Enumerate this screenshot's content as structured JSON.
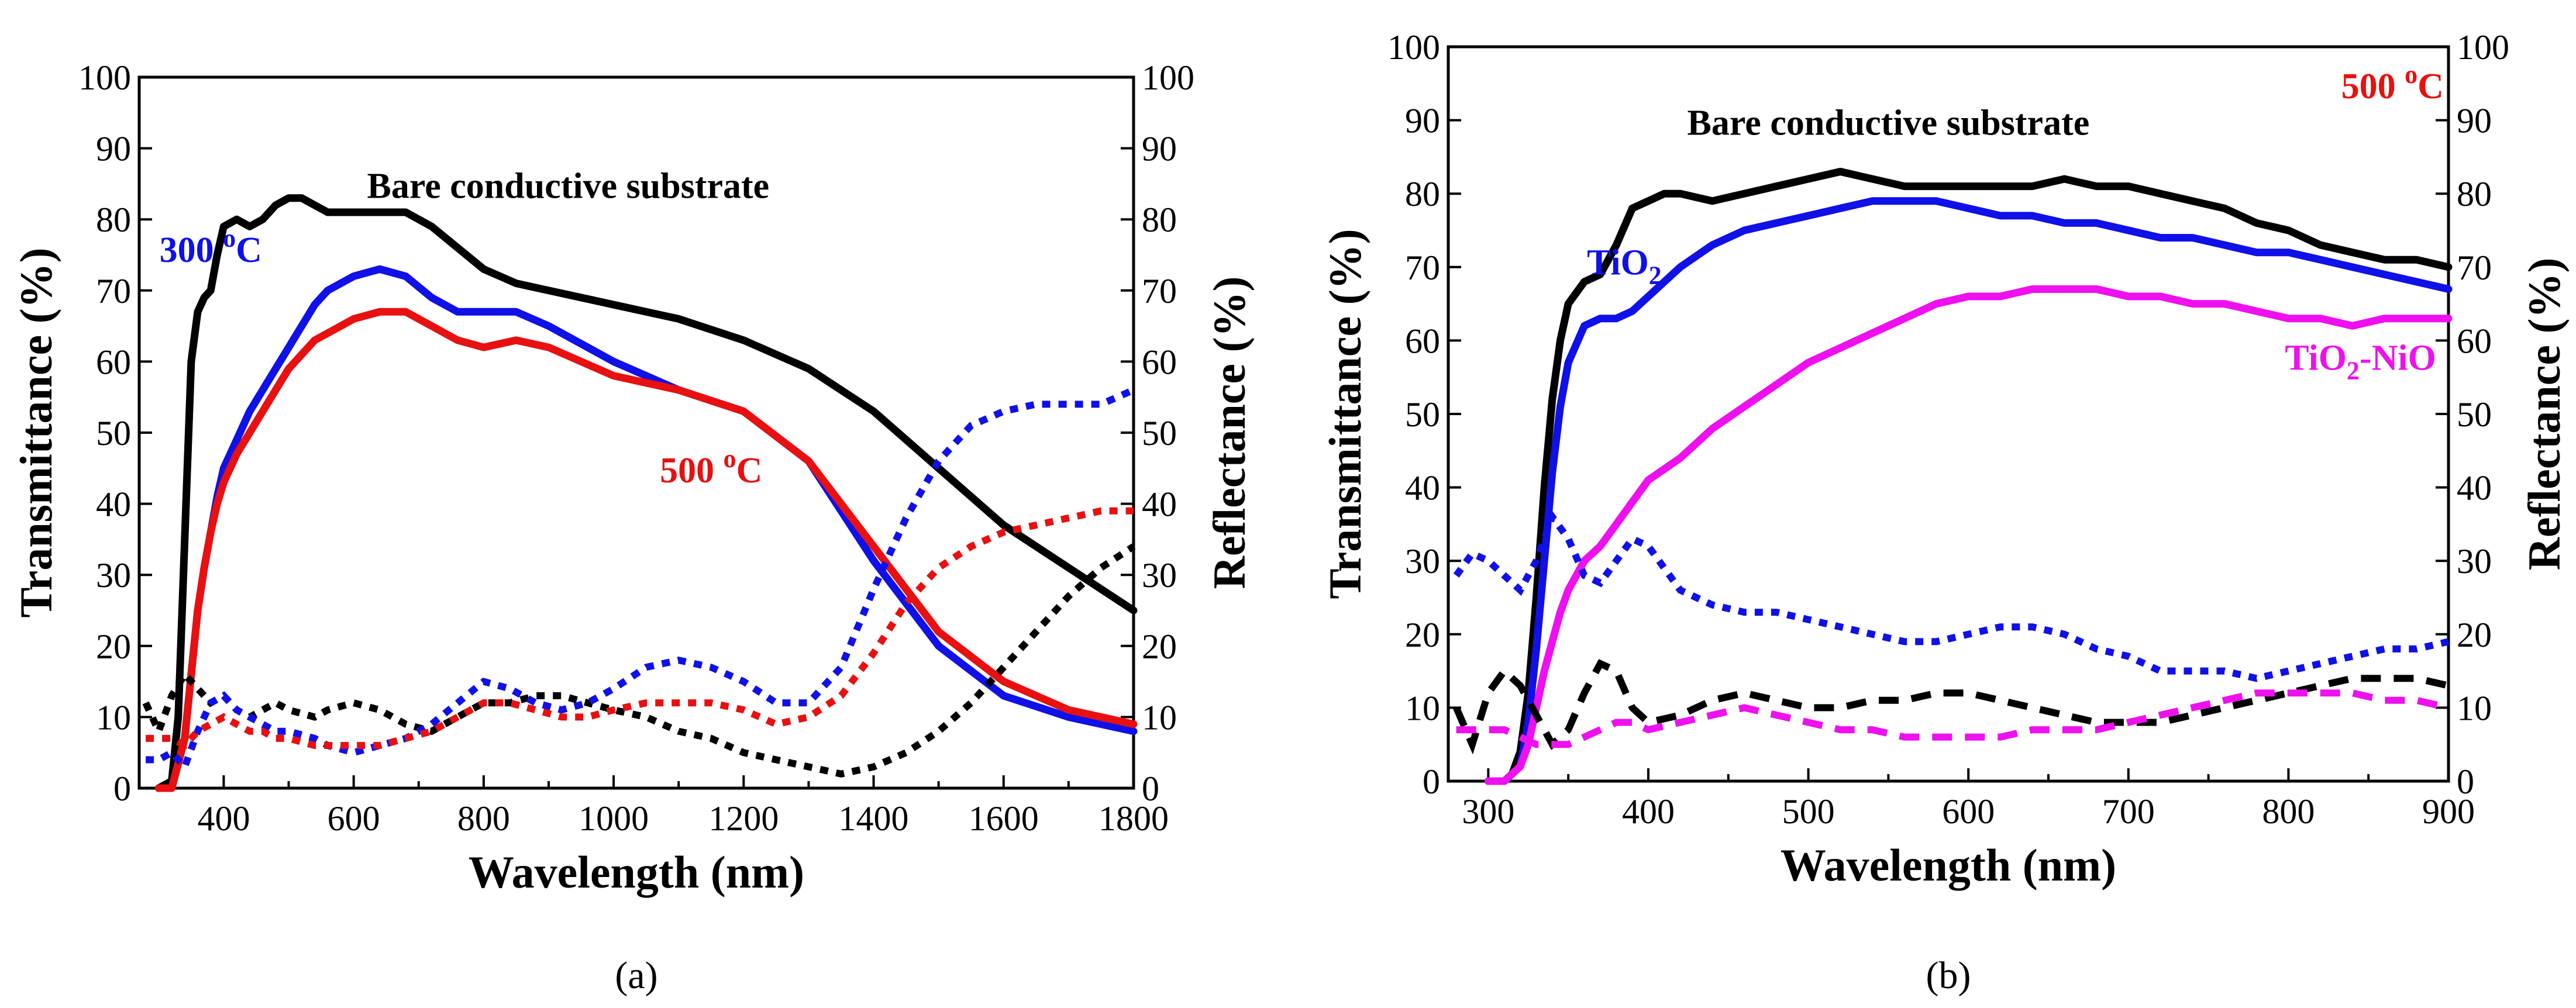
{
  "chart_data": [
    {
      "type": "line",
      "panel_label": "(a)",
      "xlabel": "Wavelength (nm)",
      "ylabel": "Transmittance (%)",
      "y2label": "Reflectance  (%)",
      "xlim": [
        270,
        1800
      ],
      "ylim": [
        0,
        100
      ],
      "y2lim": [
        0,
        100
      ],
      "xticks": [
        400,
        600,
        800,
        1000,
        1200,
        1400,
        1600,
        1800
      ],
      "yticks": [
        0,
        10,
        20,
        30,
        40,
        50,
        60,
        70,
        80,
        90,
        100
      ],
      "annotations": [
        {
          "text": "Bare conductive  substrate",
          "x": 930,
          "y": 83,
          "color": "#000000"
        },
        {
          "base": "300 ",
          "sup": "o",
          "tail": "C",
          "x": 380,
          "y": 74,
          "color": "#1010e8"
        },
        {
          "base": "500 ",
          "sup": "o",
          "tail": "C",
          "x": 1150,
          "y": 43,
          "color": "#e81010"
        }
      ],
      "series": [
        {
          "color": "#000000",
          "style": "solid",
          "axis": "left",
          "x": [
            300,
            320,
            330,
            340,
            350,
            360,
            370,
            380,
            390,
            400,
            420,
            440,
            460,
            480,
            500,
            520,
            540,
            560,
            600,
            640,
            680,
            700,
            720,
            760,
            800,
            850,
            900,
            1000,
            1100,
            1200,
            1300,
            1400,
            1500,
            1600,
            1700,
            1800
          ],
          "y": [
            0,
            1,
            10,
            35,
            60,
            67,
            69,
            70,
            75,
            79,
            80,
            79,
            80,
            82,
            83,
            83,
            82,
            81,
            81,
            81,
            81,
            80,
            79,
            76,
            73,
            71,
            70,
            68,
            66,
            63,
            59,
            53,
            45,
            37,
            31,
            25
          ]
        },
        {
          "color": "#1010e8",
          "style": "solid",
          "axis": "left",
          "x": [
            300,
            320,
            340,
            350,
            360,
            370,
            380,
            390,
            400,
            420,
            440,
            460,
            480,
            500,
            520,
            540,
            560,
            600,
            640,
            680,
            720,
            760,
            800,
            850,
            900,
            1000,
            1100,
            1200,
            1300,
            1400,
            1500,
            1600,
            1700,
            1800
          ],
          "y": [
            0,
            0,
            7,
            16,
            25,
            31,
            36,
            41,
            45,
            49,
            53,
            56,
            59,
            62,
            65,
            68,
            70,
            72,
            73,
            72,
            69,
            67,
            67,
            67,
            65,
            60,
            56,
            53,
            46,
            32,
            20,
            13,
            10,
            8
          ]
        },
        {
          "color": "#e81010",
          "style": "solid",
          "axis": "left",
          "x": [
            300,
            320,
            340,
            350,
            360,
            370,
            380,
            390,
            400,
            420,
            440,
            460,
            480,
            500,
            520,
            540,
            560,
            600,
            640,
            680,
            720,
            760,
            800,
            850,
            900,
            1000,
            1100,
            1200,
            1300,
            1400,
            1500,
            1600,
            1700,
            1800
          ],
          "y": [
            0,
            0,
            7,
            16,
            25,
            31,
            36,
            40,
            43,
            47,
            50,
            53,
            56,
            59,
            61,
            63,
            64,
            66,
            67,
            67,
            65,
            63,
            62,
            63,
            62,
            58,
            56,
            53,
            46,
            34,
            22,
            15,
            11,
            9
          ]
        },
        {
          "color": "#000000",
          "style": "dotted",
          "axis": "right",
          "x": [
            280,
            300,
            320,
            340,
            360,
            380,
            400,
            420,
            440,
            460,
            480,
            500,
            540,
            560,
            600,
            640,
            680,
            720,
            760,
            800,
            840,
            880,
            920,
            960,
            1000,
            1050,
            1100,
            1150,
            1200,
            1250,
            1300,
            1350,
            1400,
            1450,
            1500,
            1550,
            1600,
            1650,
            1700,
            1750,
            1800
          ],
          "y": [
            12,
            8,
            13,
            16,
            14,
            12,
            13,
            11,
            10,
            11,
            12,
            11,
            10,
            11,
            12,
            11,
            9,
            8,
            10,
            12,
            12,
            13,
            13,
            12,
            11,
            10,
            8,
            7,
            5,
            4,
            3,
            2,
            3,
            5,
            8,
            12,
            17,
            22,
            27,
            31,
            34
          ]
        },
        {
          "color": "#1010e8",
          "style": "dotted",
          "axis": "right",
          "x": [
            280,
            300,
            320,
            340,
            360,
            380,
            400,
            420,
            440,
            460,
            480,
            500,
            540,
            560,
            600,
            640,
            680,
            720,
            760,
            800,
            840,
            880,
            920,
            960,
            1000,
            1050,
            1100,
            1150,
            1200,
            1250,
            1300,
            1350,
            1400,
            1450,
            1500,
            1550,
            1600,
            1650,
            1700,
            1750,
            1800
          ],
          "y": [
            4,
            4,
            5,
            3,
            8,
            12,
            13,
            11,
            10,
            9,
            8,
            8,
            7,
            6,
            5,
            6,
            7,
            9,
            12,
            15,
            14,
            12,
            11,
            12,
            14,
            17,
            18,
            17,
            15,
            12,
            12,
            17,
            28,
            38,
            46,
            51,
            53,
            54,
            54,
            54,
            56
          ]
        },
        {
          "color": "#e81010",
          "style": "dotted",
          "axis": "right",
          "x": [
            280,
            300,
            320,
            340,
            360,
            380,
            400,
            420,
            440,
            460,
            480,
            500,
            540,
            560,
            600,
            640,
            680,
            720,
            760,
            800,
            840,
            880,
            920,
            960,
            1000,
            1050,
            1100,
            1150,
            1200,
            1250,
            1300,
            1350,
            1400,
            1450,
            1500,
            1550,
            1600,
            1650,
            1700,
            1750,
            1800
          ],
          "y": [
            7,
            7,
            7,
            6,
            8,
            9,
            10,
            9,
            8,
            8,
            7,
            7,
            6,
            6,
            6,
            6,
            7,
            8,
            10,
            12,
            12,
            11,
            10,
            10,
            11,
            12,
            12,
            12,
            11,
            9,
            10,
            13,
            19,
            26,
            31,
            34,
            36,
            37,
            38,
            39,
            39
          ]
        }
      ]
    },
    {
      "type": "line",
      "panel_label": "(b)",
      "xlabel": "Wavelength (nm)",
      "ylabel": "Transmittance  (%)",
      "y2label": "Reflectance (%)",
      "xlim": [
        275,
        900
      ],
      "ylim": [
        0,
        100
      ],
      "y2lim": [
        0,
        100
      ],
      "xticks": [
        300,
        400,
        500,
        600,
        700,
        800,
        900
      ],
      "yticks": [
        0,
        10,
        20,
        30,
        40,
        50,
        60,
        70,
        80,
        90,
        100
      ],
      "annotations": [
        {
          "text": "Bare conductive  substrate",
          "x": 550,
          "y": 88,
          "color": "#000000"
        },
        {
          "base": "500 ",
          "sup": "o",
          "tail": "C",
          "x": 865,
          "y": 93,
          "color": "#e81010"
        },
        {
          "base": "TiO",
          "sub": "2",
          "x": 385,
          "y": 69,
          "color": "#1010e8"
        },
        {
          "base": "TiO",
          "sub": "2",
          "tail": "-NiO",
          "x": 845,
          "y": 56,
          "color": "#ee10ee"
        }
      ],
      "series": [
        {
          "color": "#000000",
          "style": "solid",
          "axis": "left",
          "x": [
            300,
            310,
            315,
            320,
            325,
            330,
            335,
            340,
            345,
            350,
            360,
            370,
            380,
            390,
            400,
            410,
            420,
            440,
            460,
            480,
            500,
            520,
            540,
            560,
            580,
            600,
            620,
            640,
            660,
            680,
            700,
            720,
            740,
            760,
            780,
            800,
            820,
            840,
            860,
            880,
            900
          ],
          "y": [
            0,
            0,
            1,
            4,
            12,
            25,
            40,
            52,
            60,
            65,
            68,
            69,
            73,
            78,
            79,
            80,
            80,
            79,
            80,
            81,
            82,
            83,
            82,
            81,
            81,
            81,
            81,
            81,
            82,
            81,
            81,
            80,
            79,
            78,
            76,
            75,
            73,
            72,
            71,
            71,
            70
          ]
        },
        {
          "color": "#1010e8",
          "style": "solid",
          "axis": "left",
          "x": [
            300,
            310,
            315,
            320,
            325,
            330,
            335,
            340,
            345,
            350,
            360,
            370,
            380,
            390,
            400,
            420,
            440,
            460,
            480,
            500,
            520,
            540,
            560,
            580,
            600,
            620,
            640,
            660,
            680,
            700,
            720,
            740,
            760,
            780,
            800,
            820,
            840,
            860,
            880,
            900
          ],
          "y": [
            0,
            0,
            1,
            2,
            8,
            18,
            30,
            42,
            51,
            57,
            62,
            63,
            63,
            64,
            66,
            70,
            73,
            75,
            76,
            77,
            78,
            79,
            79,
            79,
            78,
            77,
            77,
            76,
            76,
            75,
            74,
            74,
            73,
            72,
            72,
            71,
            70,
            69,
            68,
            67
          ]
        },
        {
          "color": "#ee10ee",
          "style": "solid",
          "axis": "left",
          "x": [
            300,
            310,
            315,
            320,
            325,
            330,
            335,
            340,
            345,
            350,
            360,
            370,
            380,
            390,
            400,
            420,
            440,
            460,
            480,
            500,
            520,
            540,
            560,
            580,
            600,
            620,
            640,
            660,
            680,
            700,
            720,
            740,
            760,
            780,
            800,
            820,
            840,
            860,
            880,
            900
          ],
          "y": [
            0,
            0,
            1,
            2,
            5,
            10,
            15,
            19,
            23,
            26,
            30,
            32,
            35,
            38,
            41,
            44,
            48,
            51,
            54,
            57,
            59,
            61,
            63,
            65,
            66,
            66,
            67,
            67,
            67,
            66,
            66,
            65,
            65,
            64,
            63,
            63,
            62,
            63,
            63,
            63
          ]
        },
        {
          "color": "#1010e8",
          "style": "dotted",
          "axis": "right",
          "x": [
            280,
            290,
            300,
            310,
            320,
            330,
            340,
            350,
            360,
            370,
            380,
            390,
            400,
            410,
            420,
            430,
            440,
            460,
            480,
            500,
            520,
            540,
            560,
            580,
            600,
            620,
            640,
            660,
            680,
            700,
            720,
            740,
            760,
            780,
            800,
            820,
            840,
            860,
            880,
            900
          ],
          "y": [
            28,
            31,
            30,
            28,
            26,
            30,
            36,
            33,
            28,
            27,
            30,
            33,
            32,
            29,
            26,
            25,
            24,
            23,
            23,
            22,
            21,
            20,
            19,
            19,
            20,
            21,
            21,
            20,
            18,
            17,
            15,
            15,
            15,
            14,
            15,
            16,
            17,
            18,
            18,
            19
          ]
        },
        {
          "color": "#000000",
          "style": "dashed",
          "axis": "right",
          "x": [
            280,
            290,
            300,
            310,
            320,
            330,
            340,
            350,
            360,
            370,
            380,
            390,
            400,
            420,
            440,
            460,
            480,
            500,
            520,
            540,
            560,
            580,
            600,
            620,
            640,
            660,
            680,
            700,
            720,
            740,
            760,
            780,
            800,
            820,
            840,
            860,
            880,
            900
          ],
          "y": [
            10,
            5,
            12,
            15,
            13,
            9,
            5,
            7,
            12,
            16,
            15,
            10,
            8,
            9,
            11,
            12,
            11,
            10,
            10,
            11,
            11,
            12,
            12,
            11,
            10,
            9,
            8,
            8,
            8,
            9,
            10,
            11,
            12,
            13,
            14,
            14,
            14,
            13
          ]
        },
        {
          "color": "#ee10ee",
          "style": "dashed",
          "axis": "right",
          "x": [
            280,
            290,
            300,
            310,
            320,
            330,
            340,
            350,
            360,
            370,
            380,
            390,
            400,
            420,
            440,
            460,
            480,
            500,
            520,
            540,
            560,
            580,
            600,
            620,
            640,
            660,
            680,
            700,
            720,
            740,
            760,
            780,
            800,
            820,
            840,
            860,
            880,
            900
          ],
          "y": [
            7,
            7,
            7,
            7,
            6,
            5,
            5,
            5,
            6,
            7,
            8,
            8,
            7,
            8,
            9,
            10,
            9,
            8,
            7,
            7,
            6,
            6,
            6,
            6,
            7,
            7,
            7,
            8,
            9,
            10,
            11,
            12,
            12,
            12,
            12,
            11,
            11,
            10
          ]
        }
      ]
    }
  ]
}
